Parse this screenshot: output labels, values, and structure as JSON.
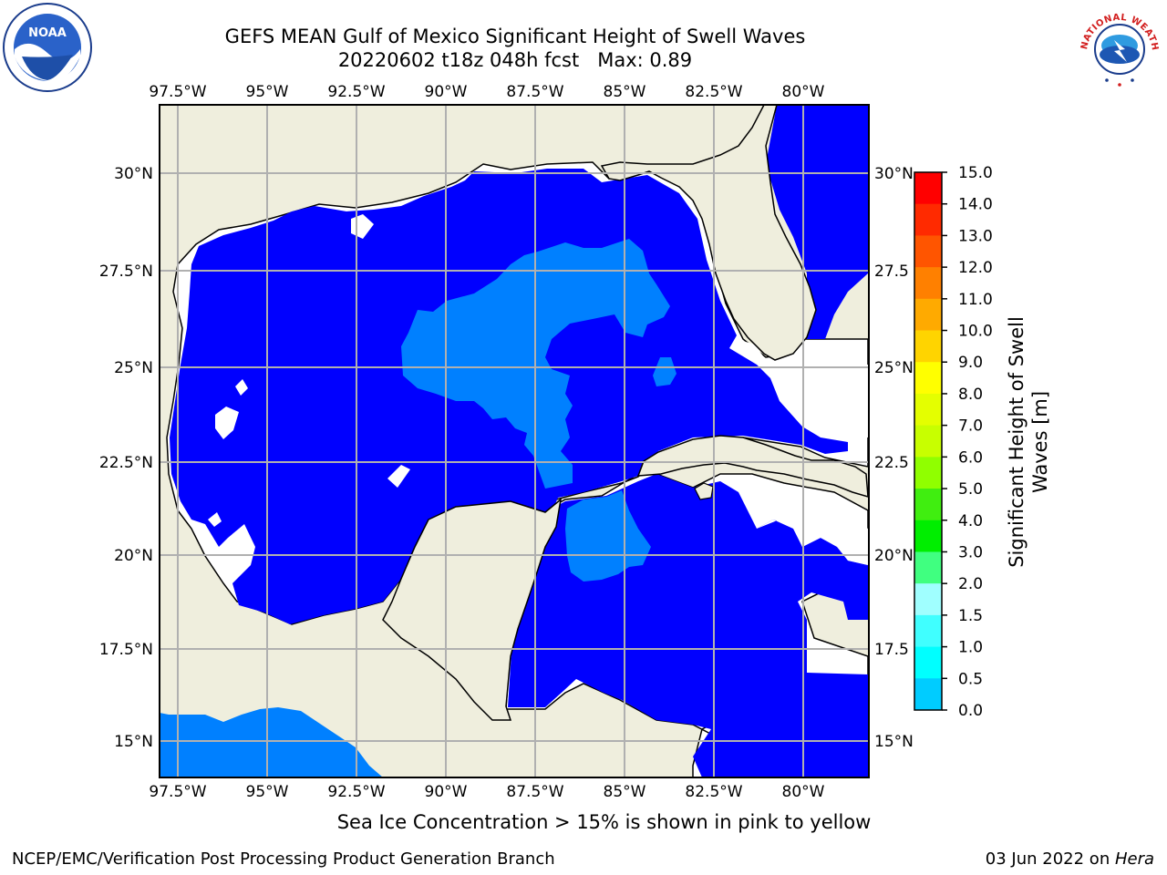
{
  "title": {
    "line1": "GEFS MEAN Gulf of Mexico Significant Height of Swell Waves",
    "line2": "20220602 t18z 048h fcst   Max: 0.89"
  },
  "logos": {
    "left": "NOAA",
    "right": "NATIONAL WEATHER SERVICE"
  },
  "map": {
    "lon_labels": [
      "97.5°W",
      "95°W",
      "92.5°W",
      "90°W",
      "87.5°W",
      "85°W",
      "82.5°W",
      "80°W"
    ],
    "lat_labels": [
      "30°N",
      "27.5°N",
      "25°N",
      "22.5°N",
      "20°N",
      "17.5°N",
      "15°N"
    ],
    "right_lat_labels": [
      "30°N",
      "27.5",
      "25°N",
      "22.5",
      "20°N",
      "17.5",
      "15°N"
    ],
    "colors": {
      "land": "#efeedd",
      "swell_0_0.5": "#0000ff",
      "swell_0.5_1.0": "#0080ff",
      "no_data": "#ffffff",
      "grid": "#b0b0b0"
    }
  },
  "colorbar": {
    "label": "Significant Height of Swell Waves [m]",
    "label_line1": "Significant Height of Swell",
    "label_line2": "Waves [m]",
    "ticks": [
      "15.0",
      "14.0",
      "13.0",
      "12.0",
      "11.0",
      "10.0",
      "9.0",
      "8.0",
      "7.0",
      "6.0",
      "5.0",
      "4.0",
      "3.0",
      "2.0",
      "1.5",
      "1.0",
      "0.5",
      "0.0"
    ],
    "colors": [
      "#ff0000",
      "#ff2a00",
      "#ff5500",
      "#ff8000",
      "#ffaa00",
      "#ffd400",
      "#ffff00",
      "#e4ff00",
      "#c8ff00",
      "#90ff00",
      "#40ee10",
      "#00ee00",
      "#40ff80",
      "#a0ffff",
      "#40ffff",
      "#00ffff",
      "#00ccff",
      "#0080ff",
      "#0000ff"
    ]
  },
  "subtitle": "Sea Ice Concentration > 15% is shown in pink to yellow",
  "footer": {
    "left": "NCEP/EMC/Verification Post Processing Product Generation Branch",
    "right_date": "03 Jun 2022 on ",
    "right_host": "Hera"
  }
}
